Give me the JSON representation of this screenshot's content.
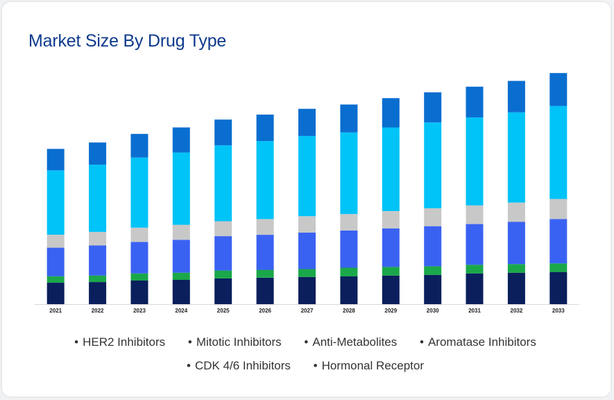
{
  "title": "Market Size By Drug Type",
  "colors": {
    "title": "#0d3a8c",
    "series": [
      "#0a1f5c",
      "#1aa84a",
      "#3a62f2",
      "#c8c8c8",
      "#00c3f8",
      "#0a6ed0"
    ]
  },
  "legend": {
    "bullet": "•",
    "items": [
      "HER2 Inhibitors",
      "Mitotic Inhibitors",
      "Anti-Metabolites",
      "Aromatase Inhibitors",
      "CDK 4/6 Inhibitors",
      "Hormonal Receptor"
    ]
  },
  "chart_data": {
    "type": "bar",
    "stacked": true,
    "categories": [
      "2021",
      "2022",
      "2023",
      "2024",
      "2025",
      "2026",
      "2027",
      "2028",
      "2029",
      "2030",
      "2031",
      "2032",
      "2033"
    ],
    "series": [
      {
        "name": "HER2 Inhibitors",
        "values": [
          30,
          31,
          33,
          34,
          36,
          37,
          38,
          39,
          40,
          41,
          43,
          44,
          45
        ]
      },
      {
        "name": "Mitotic Inhibitors",
        "values": [
          9,
          9,
          10,
          10,
          11,
          11,
          11,
          12,
          12,
          12,
          12,
          12,
          12
        ]
      },
      {
        "name": "Anti-Metabolites",
        "values": [
          40,
          42,
          44,
          46,
          48,
          49,
          51,
          52,
          54,
          56,
          57,
          59,
          62
        ]
      },
      {
        "name": "Aromatase Inhibitors",
        "values": [
          18,
          19,
          20,
          21,
          21,
          22,
          23,
          23,
          24,
          25,
          26,
          27,
          28
        ]
      },
      {
        "name": "CDK 4/6 Inhibitors",
        "values": [
          90,
          94,
          98,
          101,
          106,
          109,
          112,
          114,
          117,
          120,
          123,
          126,
          130
        ]
      },
      {
        "name": "Hormonal Receptor",
        "values": [
          30,
          31,
          33,
          35,
          36,
          37,
          38,
          39,
          41,
          42,
          43,
          44,
          46
        ]
      }
    ],
    "ylim": [
      0,
      330
    ],
    "xlabel": "",
    "ylabel": "",
    "grid": false,
    "legend_position": "bottom"
  }
}
